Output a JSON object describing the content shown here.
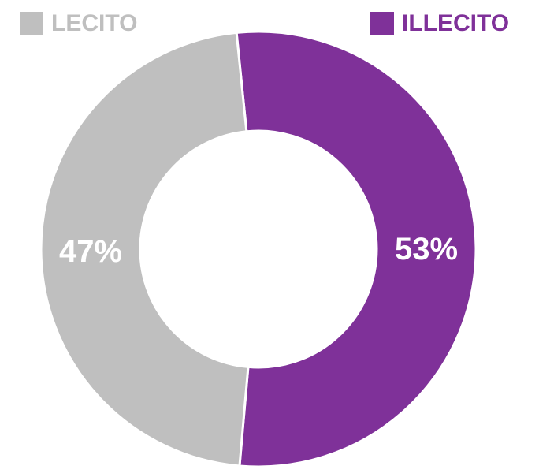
{
  "chart_data": {
    "type": "donut",
    "categories": [
      "ILLECITO",
      "LECITO"
    ],
    "values": [
      53,
      47
    ],
    "value_labels": [
      "53%",
      "47%"
    ],
    "colors": [
      "#7f3199",
      "#bfbfbf"
    ]
  }
}
